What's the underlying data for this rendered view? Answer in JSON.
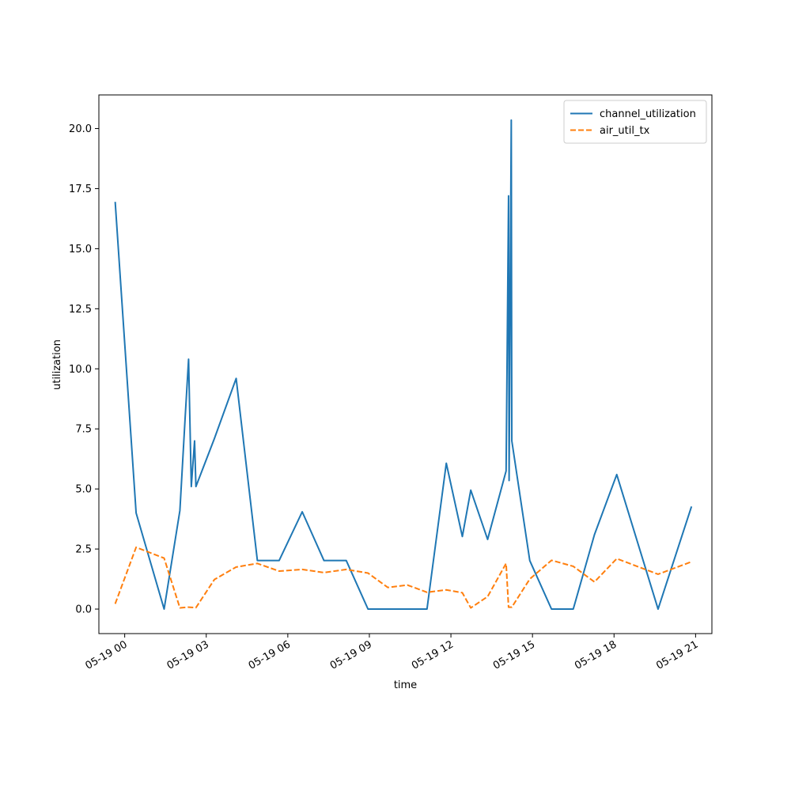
{
  "chart_data": {
    "type": "line",
    "title": "",
    "xlabel": "time",
    "ylabel": "utilization",
    "x_unit": "hours after 05-19 00:00",
    "xlim": [
      -0.95,
      21.6
    ],
    "ylim": [
      -1.02,
      21.4
    ],
    "grid": false,
    "legend_position": "top-right",
    "x_ticks": [
      {
        "value": 0,
        "label": "05-19 00"
      },
      {
        "value": 3,
        "label": "05-19 03"
      },
      {
        "value": 6,
        "label": "05-19 06"
      },
      {
        "value": 9,
        "label": "05-19 09"
      },
      {
        "value": 12,
        "label": "05-19 12"
      },
      {
        "value": 15,
        "label": "05-19 15"
      },
      {
        "value": 18,
        "label": "05-19 18"
      },
      {
        "value": 21,
        "label": "05-19 21"
      }
    ],
    "y_ticks": [
      {
        "value": 0,
        "label": "0.0"
      },
      {
        "value": 2.5,
        "label": "2.5"
      },
      {
        "value": 5,
        "label": "5.0"
      },
      {
        "value": 7.5,
        "label": "7.5"
      },
      {
        "value": 10,
        "label": "10.0"
      },
      {
        "value": 12.5,
        "label": "12.5"
      },
      {
        "value": 15,
        "label": "15.0"
      },
      {
        "value": 17.5,
        "label": "17.5"
      },
      {
        "value": 20,
        "label": "20.0"
      }
    ],
    "series": [
      {
        "name": "channel_utilization",
        "color": "#1f77b4",
        "dash": "solid",
        "points": [
          [
            -0.35,
            16.95
          ],
          [
            0.42,
            4.0
          ],
          [
            1.45,
            0.0
          ],
          [
            2.03,
            4.1
          ],
          [
            2.22,
            7.9
          ],
          [
            2.35,
            10.4
          ],
          [
            2.45,
            5.1
          ],
          [
            2.57,
            7.0
          ],
          [
            2.62,
            5.1
          ],
          [
            3.3,
            7.1
          ],
          [
            4.1,
            9.6
          ],
          [
            4.88,
            2.02
          ],
          [
            5.68,
            2.02
          ],
          [
            6.53,
            4.05
          ],
          [
            7.33,
            2.02
          ],
          [
            8.15,
            2.02
          ],
          [
            8.95,
            0.0
          ],
          [
            11.12,
            0.0
          ],
          [
            11.83,
            6.07
          ],
          [
            12.42,
            3.02
          ],
          [
            12.73,
            4.95
          ],
          [
            13.35,
            2.9
          ],
          [
            14.03,
            5.75
          ],
          [
            14.12,
            17.2
          ],
          [
            14.14,
            5.35
          ],
          [
            14.22,
            20.35
          ],
          [
            14.24,
            7.0
          ],
          [
            14.9,
            2.02
          ],
          [
            15.7,
            0.0
          ],
          [
            16.5,
            0.0
          ],
          [
            17.28,
            3.1
          ],
          [
            18.1,
            5.6
          ],
          [
            19.62,
            0.0
          ],
          [
            20.85,
            4.27
          ]
        ]
      },
      {
        "name": "air_util_tx",
        "color": "#ff7f0e",
        "dash": "dashed",
        "points": [
          [
            -0.35,
            0.22
          ],
          [
            0.42,
            2.57
          ],
          [
            1.45,
            2.12
          ],
          [
            2.03,
            0.05
          ],
          [
            2.35,
            0.08
          ],
          [
            2.62,
            0.06
          ],
          [
            3.3,
            1.23
          ],
          [
            4.1,
            1.75
          ],
          [
            4.88,
            1.9
          ],
          [
            5.68,
            1.58
          ],
          [
            6.53,
            1.65
          ],
          [
            7.33,
            1.52
          ],
          [
            8.15,
            1.65
          ],
          [
            8.95,
            1.5
          ],
          [
            9.68,
            0.9
          ],
          [
            10.4,
            1.0
          ],
          [
            11.12,
            0.7
          ],
          [
            11.83,
            0.8
          ],
          [
            12.42,
            0.68
          ],
          [
            12.73,
            0.05
          ],
          [
            13.35,
            0.52
          ],
          [
            14.03,
            1.9
          ],
          [
            14.12,
            0.08
          ],
          [
            14.24,
            0.08
          ],
          [
            14.9,
            1.25
          ],
          [
            15.7,
            2.03
          ],
          [
            16.5,
            1.78
          ],
          [
            17.28,
            1.13
          ],
          [
            18.1,
            2.1
          ],
          [
            19.62,
            1.45
          ],
          [
            20.85,
            1.97
          ]
        ]
      }
    ]
  }
}
